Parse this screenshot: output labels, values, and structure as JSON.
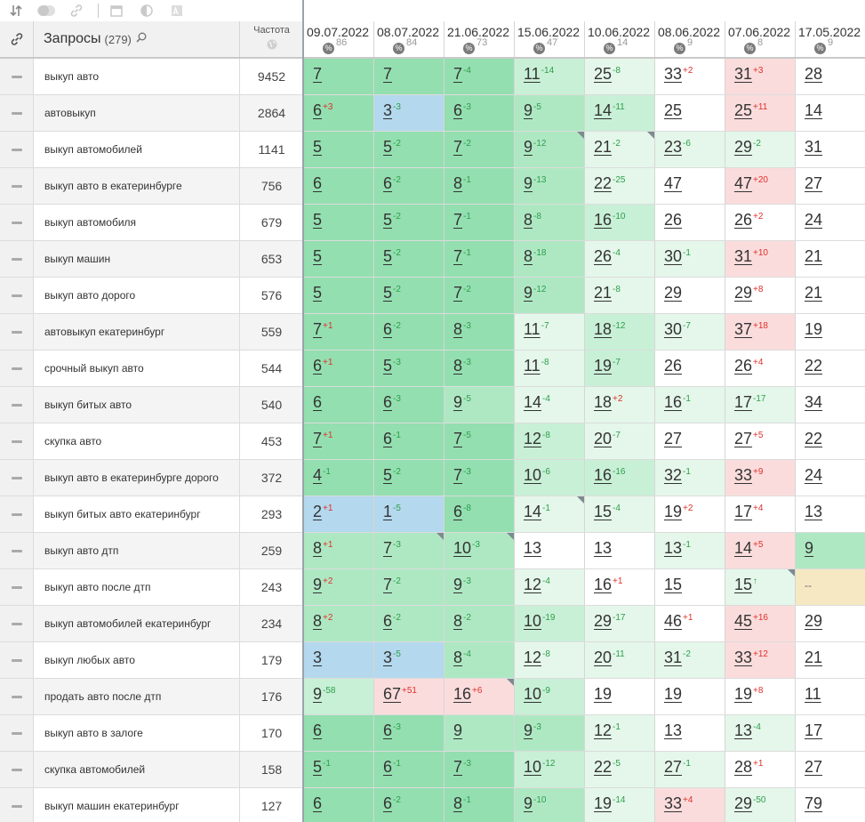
{
  "toolbar": {
    "icons": [
      "sort-icon",
      "toggle-icon",
      "link-icon",
      "calendar-icon",
      "contrast-icon",
      "text-image-icon"
    ]
  },
  "header": {
    "link_icon": "link-icon",
    "query_title": "Запросы",
    "query_count": "(279)",
    "search_icon": "magnifier-icon",
    "freq_label": "Частота",
    "freq_icon": "globe-icon"
  },
  "dates": [
    {
      "date": "09.07.2022",
      "badge": "%",
      "pct": "86"
    },
    {
      "date": "08.07.2022",
      "badge": "%",
      "pct": "84"
    },
    {
      "date": "21.06.2022",
      "badge": "%",
      "pct": "73"
    },
    {
      "date": "15.06.2022",
      "badge": "%",
      "pct": "47"
    },
    {
      "date": "10.06.2022",
      "badge": "%",
      "pct": "14"
    },
    {
      "date": "08.06.2022",
      "badge": "%",
      "pct": "9"
    },
    {
      "date": "07.06.2022",
      "badge": "%",
      "pct": "8"
    },
    {
      "date": "17.05.2022",
      "badge": "%",
      "pct": "9"
    }
  ],
  "colors": {
    "green_dark": "#93dfb0",
    "green": "#aee8c3",
    "green_light": "#c8f0d6",
    "green_pale": "#e4f7ea",
    "blue": "#b4d8ee",
    "red": "#fbdcdc",
    "yellow": "#f6e8c3",
    "delta_up": "#2e9e4a",
    "delta_down": "#e0302a"
  },
  "rows": [
    {
      "query": "выкуп авто",
      "freq": "9452",
      "cells": [
        {
          "v": "7",
          "d": "",
          "c": "g3"
        },
        {
          "v": "7",
          "d": "",
          "c": "g3"
        },
        {
          "v": "7",
          "d": "-4",
          "c": "g3"
        },
        {
          "v": "11",
          "d": "-14",
          "c": "g1"
        },
        {
          "v": "25",
          "d": "-8",
          "c": "g0"
        },
        {
          "v": "33",
          "d": "+2",
          "c": "w"
        },
        {
          "v": "31",
          "d": "+3",
          "c": "r"
        },
        {
          "v": "28",
          "d": "",
          "c": "w"
        }
      ]
    },
    {
      "query": "автовыкуп",
      "freq": "2864",
      "cells": [
        {
          "v": "6",
          "d": "+3",
          "c": "g3"
        },
        {
          "v": "3",
          "d": "-3",
          "c": "b"
        },
        {
          "v": "6",
          "d": "-3",
          "c": "g3"
        },
        {
          "v": "9",
          "d": "-5",
          "c": "g2"
        },
        {
          "v": "14",
          "d": "-11",
          "c": "g1"
        },
        {
          "v": "25",
          "d": "",
          "c": "w"
        },
        {
          "v": "25",
          "d": "+11",
          "c": "r"
        },
        {
          "v": "14",
          "d": "",
          "c": "w"
        }
      ]
    },
    {
      "query": "выкуп автомобилей",
      "freq": "1141",
      "cells": [
        {
          "v": "5",
          "d": "",
          "c": "g3"
        },
        {
          "v": "5",
          "d": "-2",
          "c": "g3"
        },
        {
          "v": "7",
          "d": "-2",
          "c": "g3"
        },
        {
          "v": "9",
          "d": "-12",
          "c": "g2",
          "k": 1
        },
        {
          "v": "21",
          "d": "-2",
          "c": "g0",
          "k": 1
        },
        {
          "v": "23",
          "d": "-6",
          "c": "g0"
        },
        {
          "v": "29",
          "d": "-2",
          "c": "g0"
        },
        {
          "v": "31",
          "d": "",
          "c": "w"
        }
      ]
    },
    {
      "query": "выкуп авто в екатеринбурге",
      "freq": "756",
      "cells": [
        {
          "v": "6",
          "d": "",
          "c": "g3"
        },
        {
          "v": "6",
          "d": "-2",
          "c": "g3"
        },
        {
          "v": "8",
          "d": "-1",
          "c": "g3"
        },
        {
          "v": "9",
          "d": "-13",
          "c": "g2"
        },
        {
          "v": "22",
          "d": "-25",
          "c": "g0"
        },
        {
          "v": "47",
          "d": "",
          "c": "w"
        },
        {
          "v": "47",
          "d": "+20",
          "c": "r"
        },
        {
          "v": "27",
          "d": "",
          "c": "w"
        }
      ]
    },
    {
      "query": "выкуп автомобиля",
      "freq": "679",
      "cells": [
        {
          "v": "5",
          "d": "",
          "c": "g3"
        },
        {
          "v": "5",
          "d": "-2",
          "c": "g3"
        },
        {
          "v": "7",
          "d": "-1",
          "c": "g3"
        },
        {
          "v": "8",
          "d": "-8",
          "c": "g2"
        },
        {
          "v": "16",
          "d": "-10",
          "c": "g1"
        },
        {
          "v": "26",
          "d": "",
          "c": "w"
        },
        {
          "v": "26",
          "d": "+2",
          "c": "w"
        },
        {
          "v": "24",
          "d": "",
          "c": "w"
        }
      ]
    },
    {
      "query": "выкуп машин",
      "freq": "653",
      "cells": [
        {
          "v": "5",
          "d": "",
          "c": "g3"
        },
        {
          "v": "5",
          "d": "-2",
          "c": "g3"
        },
        {
          "v": "7",
          "d": "-1",
          "c": "g3"
        },
        {
          "v": "8",
          "d": "-18",
          "c": "g2"
        },
        {
          "v": "26",
          "d": "-4",
          "c": "g0"
        },
        {
          "v": "30",
          "d": "-1",
          "c": "g0"
        },
        {
          "v": "31",
          "d": "+10",
          "c": "r"
        },
        {
          "v": "21",
          "d": "",
          "c": "w"
        }
      ]
    },
    {
      "query": "выкуп авто дорого",
      "freq": "576",
      "cells": [
        {
          "v": "5",
          "d": "",
          "c": "g3"
        },
        {
          "v": "5",
          "d": "-2",
          "c": "g3"
        },
        {
          "v": "7",
          "d": "-2",
          "c": "g3"
        },
        {
          "v": "9",
          "d": "-12",
          "c": "g2"
        },
        {
          "v": "21",
          "d": "-8",
          "c": "g0"
        },
        {
          "v": "29",
          "d": "",
          "c": "w"
        },
        {
          "v": "29",
          "d": "+8",
          "c": "w"
        },
        {
          "v": "21",
          "d": "",
          "c": "w"
        }
      ]
    },
    {
      "query": "автовыкуп екатеринбург",
      "freq": "559",
      "cells": [
        {
          "v": "7",
          "d": "+1",
          "c": "g3"
        },
        {
          "v": "6",
          "d": "-2",
          "c": "g3"
        },
        {
          "v": "8",
          "d": "-3",
          "c": "g3"
        },
        {
          "v": "11",
          "d": "-7",
          "c": "g0"
        },
        {
          "v": "18",
          "d": "-12",
          "c": "g1"
        },
        {
          "v": "30",
          "d": "-7",
          "c": "g0"
        },
        {
          "v": "37",
          "d": "+18",
          "c": "r"
        },
        {
          "v": "19",
          "d": "",
          "c": "w"
        }
      ]
    },
    {
      "query": "срочный выкуп авто",
      "freq": "544",
      "cells": [
        {
          "v": "6",
          "d": "+1",
          "c": "g3"
        },
        {
          "v": "5",
          "d": "-3",
          "c": "g3"
        },
        {
          "v": "8",
          "d": "-3",
          "c": "g3"
        },
        {
          "v": "11",
          "d": "-8",
          "c": "g0"
        },
        {
          "v": "19",
          "d": "-7",
          "c": "g1"
        },
        {
          "v": "26",
          "d": "",
          "c": "w"
        },
        {
          "v": "26",
          "d": "+4",
          "c": "w"
        },
        {
          "v": "22",
          "d": "",
          "c": "w"
        }
      ]
    },
    {
      "query": "выкуп битых авто",
      "freq": "540",
      "cells": [
        {
          "v": "6",
          "d": "",
          "c": "g3"
        },
        {
          "v": "6",
          "d": "-3",
          "c": "g3"
        },
        {
          "v": "9",
          "d": "-5",
          "c": "g2"
        },
        {
          "v": "14",
          "d": "-4",
          "c": "g0"
        },
        {
          "v": "18",
          "d": "+2",
          "c": "g0"
        },
        {
          "v": "16",
          "d": "-1",
          "c": "g0"
        },
        {
          "v": "17",
          "d": "-17",
          "c": "g0"
        },
        {
          "v": "34",
          "d": "",
          "c": "w"
        }
      ]
    },
    {
      "query": "скупка авто",
      "freq": "453",
      "cells": [
        {
          "v": "7",
          "d": "+1",
          "c": "g3"
        },
        {
          "v": "6",
          "d": "-1",
          "c": "g3"
        },
        {
          "v": "7",
          "d": "-5",
          "c": "g3"
        },
        {
          "v": "12",
          "d": "-8",
          "c": "g1"
        },
        {
          "v": "20",
          "d": "-7",
          "c": "g0"
        },
        {
          "v": "27",
          "d": "",
          "c": "w"
        },
        {
          "v": "27",
          "d": "+5",
          "c": "w"
        },
        {
          "v": "22",
          "d": "",
          "c": "w"
        }
      ]
    },
    {
      "query": "выкуп авто в екатеринбурге дорого",
      "freq": "372",
      "cells": [
        {
          "v": "4",
          "d": "-1",
          "c": "g3"
        },
        {
          "v": "5",
          "d": "-2",
          "c": "g3"
        },
        {
          "v": "7",
          "d": "-3",
          "c": "g3"
        },
        {
          "v": "10",
          "d": "-6",
          "c": "g1"
        },
        {
          "v": "16",
          "d": "-16",
          "c": "g1"
        },
        {
          "v": "32",
          "d": "-1",
          "c": "g0"
        },
        {
          "v": "33",
          "d": "+9",
          "c": "r"
        },
        {
          "v": "24",
          "d": "",
          "c": "w"
        }
      ]
    },
    {
      "query": "выкуп битых авто екатеринбург",
      "freq": "293",
      "cells": [
        {
          "v": "2",
          "d": "+1",
          "c": "b"
        },
        {
          "v": "1",
          "d": "-5",
          "c": "b"
        },
        {
          "v": "6",
          "d": "-8",
          "c": "g3"
        },
        {
          "v": "14",
          "d": "-1",
          "c": "g0",
          "k": 1
        },
        {
          "v": "15",
          "d": "-4",
          "c": "g0"
        },
        {
          "v": "19",
          "d": "+2",
          "c": "w"
        },
        {
          "v": "17",
          "d": "+4",
          "c": "w"
        },
        {
          "v": "13",
          "d": "",
          "c": "w"
        }
      ]
    },
    {
      "query": "выкуп авто дтп",
      "freq": "259",
      "cells": [
        {
          "v": "8",
          "d": "+1",
          "c": "g2"
        },
        {
          "v": "7",
          "d": "-3",
          "c": "g2",
          "k": 1
        },
        {
          "v": "10",
          "d": "-3",
          "c": "g2",
          "k": 1
        },
        {
          "v": "13",
          "d": "",
          "c": "w"
        },
        {
          "v": "13",
          "d": "",
          "c": "w"
        },
        {
          "v": "13",
          "d": "-1",
          "c": "g0"
        },
        {
          "v": "14",
          "d": "+5",
          "c": "r"
        },
        {
          "v": "9",
          "d": "",
          "c": "g2"
        }
      ]
    },
    {
      "query": "выкуп авто после дтп",
      "freq": "243",
      "cells": [
        {
          "v": "9",
          "d": "+2",
          "c": "g2"
        },
        {
          "v": "7",
          "d": "-2",
          "c": "g2"
        },
        {
          "v": "9",
          "d": "-3",
          "c": "g2"
        },
        {
          "v": "12",
          "d": "-4",
          "c": "g0"
        },
        {
          "v": "16",
          "d": "+1",
          "c": "w"
        },
        {
          "v": "15",
          "d": "",
          "c": "w"
        },
        {
          "v": "15",
          "d": "↑",
          "c": "g0",
          "k": 1
        },
        {
          "v": "--",
          "d": "",
          "c": "y",
          "dash": 1
        }
      ]
    },
    {
      "query": "выкуп автомобилей екатеринбург",
      "freq": "234",
      "cells": [
        {
          "v": "8",
          "d": "+2",
          "c": "g2"
        },
        {
          "v": "6",
          "d": "-2",
          "c": "g2"
        },
        {
          "v": "8",
          "d": "-2",
          "c": "g2"
        },
        {
          "v": "10",
          "d": "-19",
          "c": "g1"
        },
        {
          "v": "29",
          "d": "-17",
          "c": "g0"
        },
        {
          "v": "46",
          "d": "+1",
          "c": "w"
        },
        {
          "v": "45",
          "d": "+16",
          "c": "r"
        },
        {
          "v": "29",
          "d": "",
          "c": "w"
        }
      ]
    },
    {
      "query": "выкуп любых авто",
      "freq": "179",
      "cells": [
        {
          "v": "3",
          "d": "",
          "c": "b"
        },
        {
          "v": "3",
          "d": "-5",
          "c": "b"
        },
        {
          "v": "8",
          "d": "-4",
          "c": "g2"
        },
        {
          "v": "12",
          "d": "-8",
          "c": "g0"
        },
        {
          "v": "20",
          "d": "-11",
          "c": "g0"
        },
        {
          "v": "31",
          "d": "-2",
          "c": "g0"
        },
        {
          "v": "33",
          "d": "+12",
          "c": "r"
        },
        {
          "v": "21",
          "d": "",
          "c": "w"
        }
      ]
    },
    {
      "query": "продать авто после дтп",
      "freq": "176",
      "cells": [
        {
          "v": "9",
          "d": "-58",
          "c": "g1"
        },
        {
          "v": "67",
          "d": "+51",
          "c": "r"
        },
        {
          "v": "16",
          "d": "+6",
          "c": "r",
          "k": 1
        },
        {
          "v": "10",
          "d": "-9",
          "c": "g1"
        },
        {
          "v": "19",
          "d": "",
          "c": "w"
        },
        {
          "v": "19",
          "d": "",
          "c": "w"
        },
        {
          "v": "19",
          "d": "+8",
          "c": "w"
        },
        {
          "v": "11",
          "d": "",
          "c": "w"
        }
      ]
    },
    {
      "query": "выкуп авто в залоге",
      "freq": "170",
      "cells": [
        {
          "v": "6",
          "d": "",
          "c": "g3"
        },
        {
          "v": "6",
          "d": "-3",
          "c": "g3"
        },
        {
          "v": "9",
          "d": "",
          "c": "g2"
        },
        {
          "v": "9",
          "d": "-3",
          "c": "g2"
        },
        {
          "v": "12",
          "d": "-1",
          "c": "g0"
        },
        {
          "v": "13",
          "d": "",
          "c": "w"
        },
        {
          "v": "13",
          "d": "-4",
          "c": "g0"
        },
        {
          "v": "17",
          "d": "",
          "c": "w"
        }
      ]
    },
    {
      "query": "скупка автомобилей",
      "freq": "158",
      "cells": [
        {
          "v": "5",
          "d": "-1",
          "c": "g3"
        },
        {
          "v": "6",
          "d": "-1",
          "c": "g3"
        },
        {
          "v": "7",
          "d": "-3",
          "c": "g3"
        },
        {
          "v": "10",
          "d": "-12",
          "c": "g1"
        },
        {
          "v": "22",
          "d": "-5",
          "c": "g0"
        },
        {
          "v": "27",
          "d": "-1",
          "c": "g0"
        },
        {
          "v": "28",
          "d": "+1",
          "c": "w"
        },
        {
          "v": "27",
          "d": "",
          "c": "w"
        }
      ]
    },
    {
      "query": "выкуп машин екатеринбург",
      "freq": "127",
      "cells": [
        {
          "v": "6",
          "d": "",
          "c": "g3"
        },
        {
          "v": "6",
          "d": "-2",
          "c": "g3"
        },
        {
          "v": "8",
          "d": "-1",
          "c": "g3"
        },
        {
          "v": "9",
          "d": "-10",
          "c": "g2"
        },
        {
          "v": "19",
          "d": "-14",
          "c": "g0"
        },
        {
          "v": "33",
          "d": "+4",
          "c": "r"
        },
        {
          "v": "29",
          "d": "-50",
          "c": "g0"
        },
        {
          "v": "79",
          "d": "",
          "c": "w"
        }
      ]
    }
  ]
}
